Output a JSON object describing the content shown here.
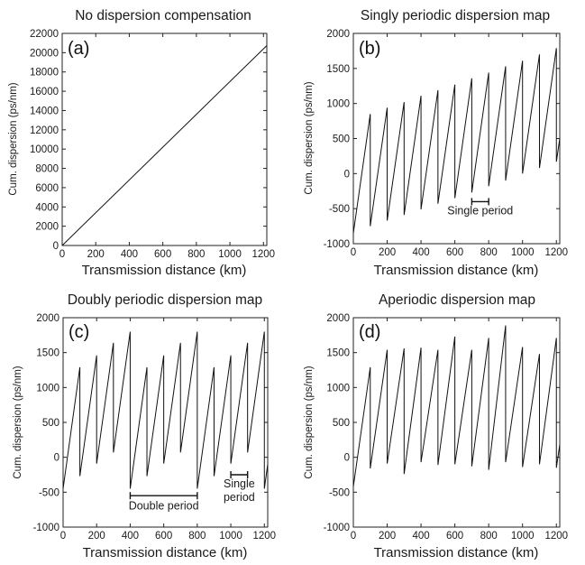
{
  "chart_data": [
    {
      "type": "line",
      "panel_label": "(a)",
      "title": "No dispersion compensation",
      "xlabel": "Transmission distance (km)",
      "ylabel": "Cum. dispersion (ps/nm)",
      "xlim": [
        0,
        1220
      ],
      "ylim": [
        0,
        22000
      ],
      "xticks": [
        0,
        200,
        400,
        600,
        800,
        1000,
        1200
      ],
      "yticks": [
        0,
        2000,
        4000,
        6000,
        8000,
        10000,
        12000,
        14000,
        16000,
        18000,
        20000,
        22000
      ],
      "series": [
        {
          "x": [
            0,
            1220
          ],
          "y": [
            0,
            20740
          ]
        }
      ],
      "annotations": []
    },
    {
      "type": "line",
      "panel_label": "(b)",
      "title": "Singly periodic dispersion map",
      "xlabel": "Transmission distance (km)",
      "ylabel": "Cum. dispersion (ps/nm)",
      "xlim": [
        0,
        1220
      ],
      "ylim": [
        -1000,
        2000
      ],
      "xticks": [
        0,
        200,
        400,
        600,
        800,
        1000,
        1200
      ],
      "yticks": [
        -1000,
        -500,
        0,
        500,
        1000,
        1500,
        2000
      ],
      "series": [
        {
          "x": [
            0,
            100,
            100,
            200,
            200,
            300,
            300,
            400,
            400,
            500,
            500,
            600,
            600,
            700,
            700,
            800,
            800,
            900,
            900,
            1000,
            1000,
            1100,
            1100,
            1200,
            1200,
            1220
          ],
          "y": [
            -850,
            850,
            -750,
            940,
            -670,
            1020,
            -590,
            1110,
            -510,
            1190,
            -430,
            1270,
            -350,
            1360,
            -270,
            1440,
            -180,
            1530,
            -100,
            1610,
            0,
            1700,
            80,
            1790,
            170,
            500
          ]
        }
      ],
      "annotations": [
        {
          "text": "Single period",
          "x1": 700,
          "x2": 800,
          "y": -400,
          "label_y": -580
        }
      ]
    },
    {
      "type": "line",
      "panel_label": "(c)",
      "title": "Doubly periodic dispersion map",
      "xlabel": "Transmission distance (km)",
      "ylabel": "Cum. dispersion (ps/nm)",
      "xlim": [
        0,
        1220
      ],
      "ylim": [
        -1000,
        2000
      ],
      "xticks": [
        0,
        200,
        400,
        600,
        800,
        1000,
        1200
      ],
      "yticks": [
        -1000,
        -500,
        0,
        500,
        1000,
        1500,
        2000
      ],
      "series": [
        {
          "x": [
            0,
            100,
            100,
            200,
            200,
            300,
            300,
            400,
            400,
            500,
            500,
            600,
            600,
            700,
            700,
            800,
            800,
            900,
            900,
            1000,
            1000,
            1100,
            1100,
            1200,
            1200,
            1220
          ],
          "y": [
            -450,
            1290,
            -270,
            1460,
            -90,
            1640,
            70,
            1800,
            -450,
            1290,
            -270,
            1460,
            -90,
            1640,
            70,
            1800,
            -450,
            1290,
            -270,
            1460,
            -90,
            1640,
            70,
            1800,
            -450,
            -100
          ]
        }
      ],
      "annotations": [
        {
          "text": "Double period",
          "x1": 400,
          "x2": 800,
          "y": -550,
          "label_y": -750
        },
        {
          "text": "Single",
          "text2": "period",
          "x1": 1000,
          "x2": 1100,
          "y": -250,
          "label_y": -430
        }
      ]
    },
    {
      "type": "line",
      "panel_label": "(d)",
      "title": "Aperiodic dispersion map",
      "xlabel": "Transmission distance (km)",
      "ylabel": "Cum. dispersion (ps/nm)",
      "xlim": [
        0,
        1220
      ],
      "ylim": [
        -1000,
        2000
      ],
      "xticks": [
        0,
        200,
        400,
        600,
        800,
        1000,
        1200
      ],
      "yticks": [
        -1000,
        -500,
        0,
        500,
        1000,
        1500,
        2000
      ],
      "series": [
        {
          "x": [
            0,
            100,
            100,
            200,
            200,
            300,
            300,
            400,
            400,
            500,
            500,
            600,
            600,
            700,
            700,
            800,
            800,
            900,
            900,
            1000,
            1000,
            1100,
            1100,
            1200,
            1200,
            1220
          ],
          "y": [
            -420,
            1290,
            -160,
            1540,
            -90,
            1560,
            -240,
            1570,
            -70,
            1540,
            -110,
            1730,
            -100,
            1540,
            -130,
            1710,
            -180,
            1890,
            -70,
            1580,
            -140,
            1480,
            -100,
            1710,
            -150,
            180
          ]
        }
      ],
      "annotations": []
    }
  ]
}
